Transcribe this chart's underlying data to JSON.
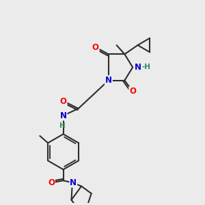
{
  "bg_color": "#ebebeb",
  "bond_color": "#2d2d2d",
  "bond_width": 1.5,
  "atom_colors": {
    "O": "#ff0000",
    "N": "#0000cc",
    "H_amide": "#2d8c5a",
    "C": "#2d2d2d"
  },
  "font_size_atom": 8.5,
  "font_size_small": 7.0
}
